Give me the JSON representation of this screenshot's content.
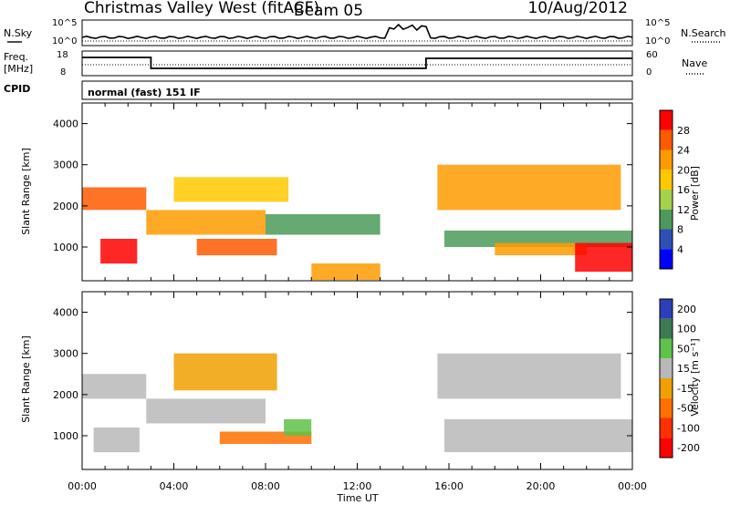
{
  "header": {
    "station": "Christmas Valley West (fitACF)",
    "beam": "Beam 05",
    "date": "10/Aug/2012"
  },
  "noise": {
    "left_label": "N.Sky",
    "right_label": "N.Search",
    "y_ticks": [
      "10^5",
      "10^0"
    ]
  },
  "freq": {
    "left_label_1": "Freq.",
    "left_label_2": "[MHz]",
    "left_ticks": [
      "18",
      "8"
    ],
    "right_label": "Nave",
    "right_ticks": [
      "60",
      "0"
    ]
  },
  "cpid": {
    "label": "CPID",
    "value": "normal (fast) 151 IF"
  },
  "axes": {
    "y_label": "Slant Range [km]",
    "y_ticks": [
      "4000",
      "3000",
      "2000",
      "1000"
    ],
    "x_label": "Time UT",
    "x_ticks": [
      "00:00",
      "04:00",
      "08:00",
      "12:00",
      "16:00",
      "20:00",
      "00:00"
    ]
  },
  "power_scale": {
    "label": "Power [dB]",
    "ticks": [
      "28",
      "24",
      "20",
      "16",
      "12",
      "8",
      "4"
    ],
    "colors": [
      "#ff0000",
      "#ff5a00",
      "#ff9b00",
      "#ffc800",
      "#a6d24a",
      "#4c9a5a",
      "#2d4fb6",
      "#0000ff"
    ]
  },
  "velocity_scale": {
    "label": "Velocity [m s⁻¹]",
    "ticks": [
      "200",
      "100",
      "50",
      "15",
      "-15",
      "-50",
      "-100",
      "-200"
    ],
    "colors": [
      "#2d3fb8",
      "#3d7a52",
      "#5fc24a",
      "#b8b8b8",
      "#f0a000",
      "#ff7000",
      "#ff3000",
      "#ff0000"
    ]
  },
  "chart_data": [
    {
      "type": "heatmap",
      "name": "power",
      "xlabel": "Time UT",
      "ylabel": "Slant Range [km]",
      "xlim": [
        0,
        24
      ],
      "ylim": [
        180,
        4500
      ],
      "colorbar": {
        "label": "Power [dB]",
        "ticks": [
          4,
          8,
          12,
          16,
          20,
          24,
          28
        ]
      },
      "echo_bands": [
        {
          "t0": 0.0,
          "t1": 2.8,
          "r0": 1900,
          "r1": 2450,
          "power_db": 26
        },
        {
          "t0": 0.8,
          "t1": 2.4,
          "r0": 600,
          "r1": 1200,
          "power_db": 27
        },
        {
          "t0": 2.8,
          "t1": 8.0,
          "r0": 1300,
          "r1": 1900,
          "power_db": 22
        },
        {
          "t0": 4.0,
          "t1": 9.0,
          "r0": 2100,
          "r1": 2700,
          "power_db": 18
        },
        {
          "t0": 5.0,
          "t1": 8.5,
          "r0": 800,
          "r1": 1200,
          "power_db": 23
        },
        {
          "t0": 8.0,
          "t1": 13.0,
          "r0": 1300,
          "r1": 1800,
          "power_db": 10
        },
        {
          "t0": 10.0,
          "t1": 13.0,
          "r0": 200,
          "r1": 600,
          "power_db": 22
        },
        {
          "t0": 15.5,
          "t1": 23.5,
          "r0": 1900,
          "r1": 3000,
          "power_db": 22
        },
        {
          "t0": 15.8,
          "t1": 24.0,
          "r0": 1000,
          "r1": 1400,
          "power_db": 8
        },
        {
          "t0": 18.0,
          "t1": 22.0,
          "r0": 800,
          "r1": 1100,
          "power_db": 20
        },
        {
          "t0": 21.5,
          "t1": 24.0,
          "r0": 400,
          "r1": 1100,
          "power_db": 28
        }
      ]
    },
    {
      "type": "heatmap",
      "name": "velocity",
      "xlabel": "Time UT",
      "ylabel": "Slant Range [km]",
      "xlim": [
        0,
        24
      ],
      "ylim": [
        180,
        4500
      ],
      "colorbar": {
        "label": "Velocity [m s⁻¹]",
        "ticks": [
          -200,
          -100,
          -50,
          -15,
          15,
          50,
          100,
          200
        ]
      },
      "echo_bands": [
        {
          "t0": 0.0,
          "t1": 2.8,
          "r0": 1900,
          "r1": 2500,
          "velocity": 0
        },
        {
          "t0": 0.5,
          "t1": 2.5,
          "r0": 600,
          "r1": 1200,
          "velocity": 0
        },
        {
          "t0": 2.8,
          "t1": 8.0,
          "r0": 1300,
          "r1": 1900,
          "velocity": 0
        },
        {
          "t0": 4.0,
          "t1": 8.5,
          "r0": 2100,
          "r1": 3000,
          "velocity": -30
        },
        {
          "t0": 6.0,
          "t1": 10.0,
          "r0": 800,
          "r1": 1100,
          "velocity": -50
        },
        {
          "t0": 8.8,
          "t1": 10.0,
          "r0": 1000,
          "r1": 1400,
          "velocity": 40
        },
        {
          "t0": 15.5,
          "t1": 23.5,
          "r0": 1900,
          "r1": 3000,
          "velocity": 0
        },
        {
          "t0": 15.8,
          "t1": 24.0,
          "r0": 600,
          "r1": 1400,
          "velocity": 0
        }
      ]
    }
  ]
}
